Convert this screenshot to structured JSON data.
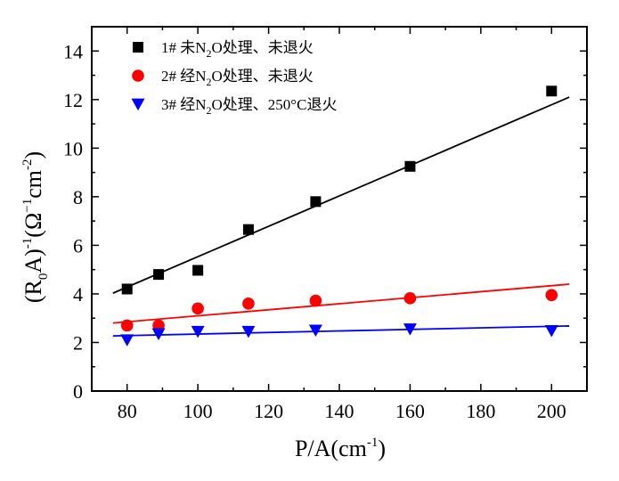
{
  "chart_data": {
    "type": "scatter",
    "xlabel": "P/A(cm",
    "xlabel_sup": "-1",
    "xlabel_tail": ")",
    "ylabel_parts": {
      "p1": "(R",
      "sub0": "0",
      "p2": "A)",
      "sup1": "-1",
      "p3": "(Ω",
      "sup2": "−1",
      "p4": "cm",
      "sup3": "-2",
      "p5": ")"
    },
    "xlim": [
      70,
      210
    ],
    "ylim": [
      0,
      15
    ],
    "xticks": [
      80,
      100,
      120,
      140,
      160,
      180,
      200
    ],
    "yticks": [
      0,
      2,
      4,
      6,
      8,
      10,
      12,
      14
    ],
    "grid": false,
    "legend_position": "top-left",
    "series": [
      {
        "name_parts": [
          "1# 未N",
          "2",
          "O处理、未退火"
        ],
        "marker": "square",
        "color": "#000000",
        "x": [
          80,
          88.9,
          100,
          114.3,
          133.3,
          160,
          200
        ],
        "y": [
          4.2,
          4.8,
          4.97,
          6.65,
          7.8,
          9.25,
          12.35
        ],
        "fit": {
          "x": [
            76,
            205
          ],
          "y": [
            4.03,
            12.1
          ]
        }
      },
      {
        "name_parts": [
          "2# 经N",
          "2",
          "O处理、未退火"
        ],
        "marker": "circle",
        "color": "#ff0000",
        "x": [
          80,
          88.9,
          100,
          114.3,
          133.3,
          160,
          200
        ],
        "y": [
          2.7,
          2.7,
          3.4,
          3.6,
          3.72,
          3.82,
          3.95
        ],
        "fit": {
          "x": [
            76,
            205
          ],
          "y": [
            2.8,
            4.4
          ]
        }
      },
      {
        "name_parts": [
          "3# 经N",
          "2",
          "O处理、250°C退火"
        ],
        "marker": "triangle-down",
        "color": "#0000ff",
        "x": [
          80,
          88.9,
          100,
          114.3,
          133.3,
          160,
          200
        ],
        "y": [
          2.1,
          2.35,
          2.45,
          2.45,
          2.5,
          2.55,
          2.48
        ],
        "fit": {
          "x": [
            76,
            205
          ],
          "y": [
            2.27,
            2.68
          ]
        }
      }
    ]
  }
}
